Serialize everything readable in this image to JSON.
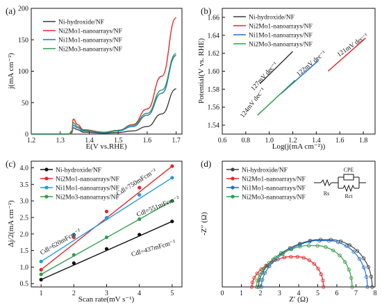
{
  "chart_data": [
    {
      "panel": "(a)",
      "type": "line",
      "xlabel": "E(V vs.RHE)",
      "ylabel": "j(mA cm⁻²)",
      "xlim": [
        1.2,
        1.72
      ],
      "ylim": [
        0,
        200
      ],
      "xticks": [
        "1.2",
        "1.3",
        "1.4",
        "1.5",
        "1.6",
        "1.7"
      ],
      "yticks": [
        "0",
        "50",
        "100",
        "150",
        "200"
      ],
      "legend": "top-left",
      "series": [
        {
          "name": "Ni-hydroxide/NF",
          "color": "#3a3a3a",
          "x": [
            1.2,
            1.33,
            1.34,
            1.345,
            1.36,
            1.38,
            1.45,
            1.5,
            1.55,
            1.6,
            1.65,
            1.7
          ],
          "y": [
            0,
            0,
            2,
            10,
            7,
            3,
            1.5,
            2.5,
            5,
            12,
            32,
            72
          ]
        },
        {
          "name": "Ni2Mo1-nanoarrays/NF",
          "color": "#e8262a",
          "x": [
            1.2,
            1.33,
            1.34,
            1.345,
            1.36,
            1.38,
            1.45,
            1.5,
            1.55,
            1.6,
            1.65,
            1.7
          ],
          "y": [
            0,
            0,
            5,
            24,
            15,
            7,
            3,
            6,
            15,
            40,
            92,
            185
          ]
        },
        {
          "name": "Ni1Mo1-nanoarrays/NF",
          "color": "#1f6fd8",
          "x": [
            1.2,
            1.33,
            1.34,
            1.345,
            1.36,
            1.38,
            1.45,
            1.5,
            1.55,
            1.6,
            1.65,
            1.7
          ],
          "y": [
            0,
            0,
            3,
            14,
            10,
            5,
            2.5,
            5,
            12,
            30,
            65,
            125
          ]
        },
        {
          "name": "Ni2Mo3-nanoarrays/NF",
          "color": "#2e9e4a",
          "x": [
            1.2,
            1.33,
            1.34,
            1.345,
            1.36,
            1.38,
            1.45,
            1.5,
            1.55,
            1.6,
            1.65,
            1.7
          ],
          "y": [
            0,
            0,
            3,
            18,
            12,
            6,
            3,
            6,
            14,
            33,
            70,
            128
          ]
        }
      ]
    },
    {
      "panel": "(b)",
      "type": "line",
      "xlabel": "Log(j(mA cm⁻²))",
      "ylabel": "Potential(V vs. RHE)",
      "xlim": [
        0.6,
        1.9
      ],
      "ylim": [
        1.53,
        1.67
      ],
      "xticks": [
        "0.6",
        "0.8",
        "1.0",
        "1.2",
        "1.4",
        "1.6",
        "1.8"
      ],
      "yticks": [
        "1.54",
        "1.56",
        "1.58",
        "1.60",
        "1.62",
        "1.64",
        "1.66"
      ],
      "legend": "top-left",
      "series": [
        {
          "name": "Ni-hydroxide/NF",
          "color": "#3a3a3a",
          "x": [
            0.92,
            1.2
          ],
          "y": [
            1.586,
            1.622
          ]
        },
        {
          "name": "Ni2Mo1-nanoarrays/NF",
          "color": "#e8262a",
          "x": [
            1.5,
            1.82
          ],
          "y": [
            1.6,
            1.637
          ]
        },
        {
          "name": "Ni1Mo1-nanoarrays/NF",
          "color": "#1f6fd8",
          "x": [
            1.1,
            1.42
          ],
          "y": [
            1.575,
            1.612
          ]
        },
        {
          "name": "Ni2Mo3-nanoarrays/NF",
          "color": "#2e9e4a",
          "x": [
            0.9,
            1.22
          ],
          "y": [
            1.551,
            1.59
          ]
        }
      ],
      "annotations": [
        "127mV dec⁻¹",
        "122mV dec⁻¹",
        "121mV dec⁻¹",
        "124mV dec⁻¹"
      ]
    },
    {
      "panel": "(c)",
      "type": "scatter",
      "xlabel": "Scan rate(mV s⁻¹)",
      "ylabel": "Δj/2(mA cm⁻²)",
      "xlim": [
        0.7,
        5.3
      ],
      "ylim": [
        0.4,
        4.2
      ],
      "xticks": [
        "1",
        "2",
        "3",
        "4",
        "5"
      ],
      "yticks": [
        "0.5",
        "1.0",
        "1.5",
        "2.0",
        "2.5",
        "3.0",
        "3.5",
        "4.0"
      ],
      "legend": "top-left",
      "series": [
        {
          "name": "Ni-hydroxide/NF",
          "color": "#111111",
          "x": [
            1,
            2,
            3,
            4,
            5
          ],
          "y": [
            0.62,
            1.12,
            1.55,
            1.98,
            2.38
          ]
        },
        {
          "name": "Ni2Mo1-nanoarrays/NF",
          "color": "#e8262a",
          "x": [
            1,
            2,
            3,
            4,
            5
          ],
          "y": [
            0.92,
            1.9,
            2.68,
            3.4,
            4.05
          ]
        },
        {
          "name": "Ni1Mo1-nanoarrays/NF",
          "color": "#1f9bdc",
          "x": [
            1,
            2,
            3,
            4,
            5
          ],
          "y": [
            1.17,
            1.97,
            2.49,
            3.18,
            3.7
          ]
        },
        {
          "name": "Ni2Mo3-nanoarrays/NF",
          "color": "#2e9e4a",
          "x": [
            1,
            2,
            3,
            4,
            5
          ],
          "y": [
            0.78,
            1.37,
            1.9,
            2.45,
            3.0
          ]
        }
      ],
      "annotations": [
        "Cdl=750mFcm⁻²",
        "Cdl=620mFcm⁻²",
        "Cdl=551mFcm⁻²",
        "Cdl=437mFcm⁻²"
      ]
    },
    {
      "panel": "(d)",
      "type": "scatter",
      "xlabel": "Z′ (Ω)",
      "ylabel": "-Z′′ (Ω)",
      "xlim": [
        0,
        8
      ],
      "xticks": [
        "0",
        "1",
        "2",
        "3",
        "4",
        "5",
        "6",
        "7",
        "8"
      ],
      "legend": "top-left",
      "circuit_labels": [
        "CPE",
        "Rs",
        "Rct"
      ],
      "series": [
        {
          "name": "Ni-hydroxide/NF",
          "color": "#444444",
          "x_start": 1.9,
          "x_end": 7.85,
          "peak": 2.35
        },
        {
          "name": "Ni2Mo1-nanoarrays/NF",
          "color": "#e8262a",
          "x_start": 1.55,
          "x_end": 5.3,
          "peak": 1.5
        },
        {
          "name": "Ni1Mo1-nanoarrays/NF",
          "color": "#1f6fd8",
          "x_start": 2.05,
          "x_end": 7.6,
          "peak": 2.3
        },
        {
          "name": "Ni2Mo3-nanoarrays/NF",
          "color": "#2e9e4a",
          "x_start": 1.8,
          "x_end": 6.8,
          "peak": 2.05
        }
      ]
    }
  ]
}
